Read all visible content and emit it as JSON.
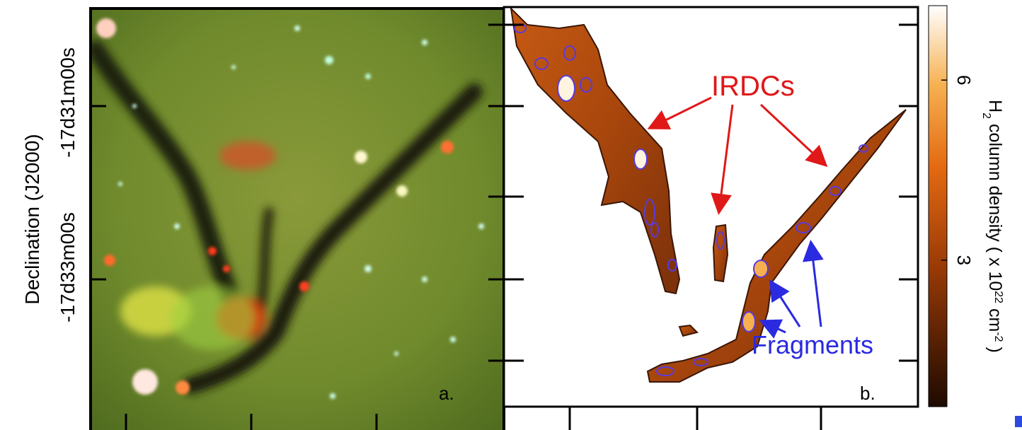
{
  "panel_a": {
    "y_axis_label": "Declination (J2000)",
    "y_tick_labels": [
      "-17d31m00s",
      "-17d33m00s"
    ],
    "panel_label": "a."
  },
  "panel_b": {
    "annotations": [
      "IRDCs",
      "Fragments"
    ],
    "panel_label": "b."
  },
  "colorbar": {
    "label": {
      "symbol": "H",
      "subscript": "2",
      "text": " column density ( x 10",
      "exponent": "22",
      "unit": " cm",
      "unit_exponent": "-2",
      "close": " )"
    },
    "lim": [
      0.56,
      7.24
    ],
    "ticks": [
      3,
      6
    ]
  }
}
